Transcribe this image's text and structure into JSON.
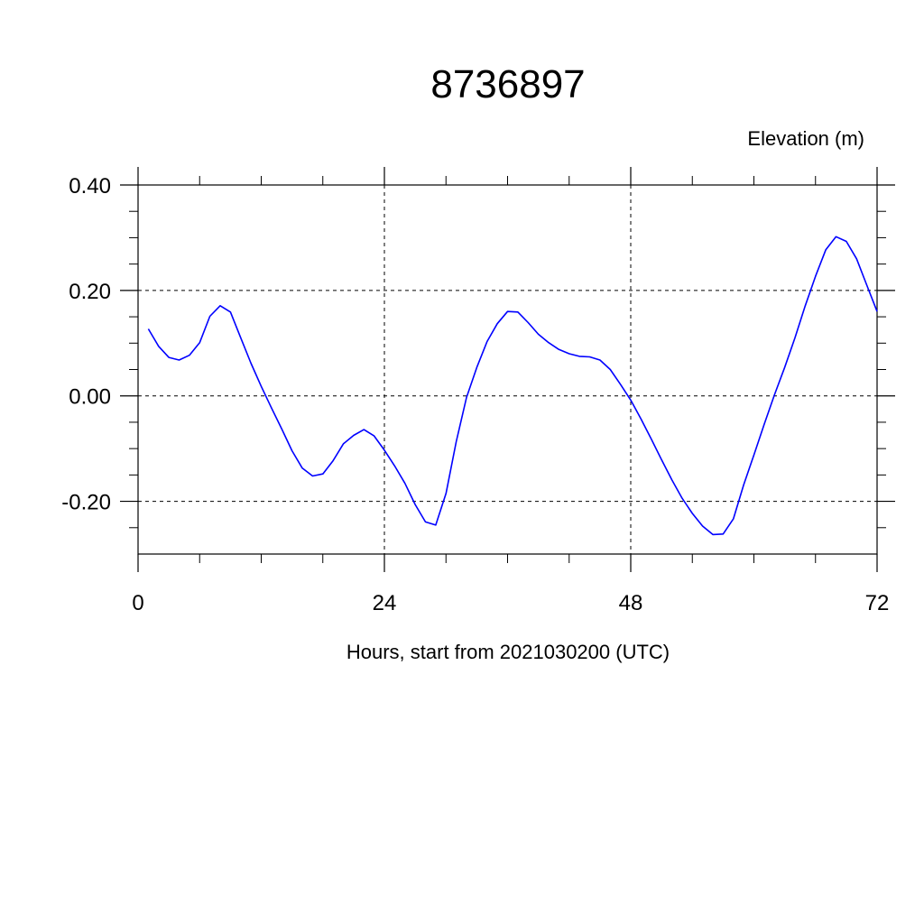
{
  "chart_data": {
    "type": "line",
    "title": "8736897",
    "ylabel": "Elevation (m)",
    "xlabel": "Hours, start from 2021030200 (UTC)",
    "xlim": [
      0,
      72
    ],
    "ylim": [
      -0.3,
      0.4
    ],
    "x_ticks": [
      0,
      24,
      48,
      72
    ],
    "x_tick_labels": [
      "0",
      "24",
      "48",
      "72"
    ],
    "y_ticks": [
      0.4,
      0.2,
      0.0,
      -0.2
    ],
    "y_tick_labels": [
      "0.40",
      "0.20",
      "0.00",
      "-0.20"
    ],
    "grid": true,
    "series": [
      {
        "color": "#0000ff",
        "x": [
          1,
          2,
          3,
          4,
          5,
          6,
          7,
          8,
          9,
          10,
          11,
          12,
          13,
          14,
          15,
          16,
          17,
          18,
          19,
          20,
          21,
          22,
          23,
          24,
          25,
          26,
          27,
          28,
          29,
          30,
          31,
          32,
          33,
          34,
          35,
          36,
          37,
          38,
          39,
          40,
          41,
          42,
          43,
          44,
          45,
          46,
          47,
          48,
          49,
          50,
          51,
          52,
          53,
          54,
          55,
          56,
          57,
          58,
          59,
          60,
          61,
          62,
          63,
          64,
          65,
          66,
          67,
          68,
          69,
          70,
          71,
          72
        ],
        "y": [
          0.127,
          0.094,
          0.073,
          0.068,
          0.077,
          0.101,
          0.151,
          0.171,
          0.159,
          0.11,
          0.062,
          0.018,
          -0.023,
          -0.063,
          -0.104,
          -0.137,
          -0.152,
          -0.148,
          -0.123,
          -0.091,
          -0.075,
          -0.064,
          -0.076,
          -0.103,
          -0.133,
          -0.166,
          -0.206,
          -0.239,
          -0.245,
          -0.185,
          -0.087,
          -0.003,
          0.054,
          0.103,
          0.137,
          0.16,
          0.159,
          0.139,
          0.117,
          0.101,
          0.088,
          0.08,
          0.075,
          0.074,
          0.068,
          0.05,
          0.022,
          -0.008,
          -0.044,
          -0.082,
          -0.121,
          -0.159,
          -0.194,
          -0.223,
          -0.247,
          -0.263,
          -0.262,
          -0.233,
          -0.169,
          -0.112,
          -0.054,
          0.002,
          0.054,
          0.11,
          0.171,
          0.227,
          0.277,
          0.302,
          0.293,
          0.26,
          0.21,
          0.16
        ]
      }
    ]
  }
}
